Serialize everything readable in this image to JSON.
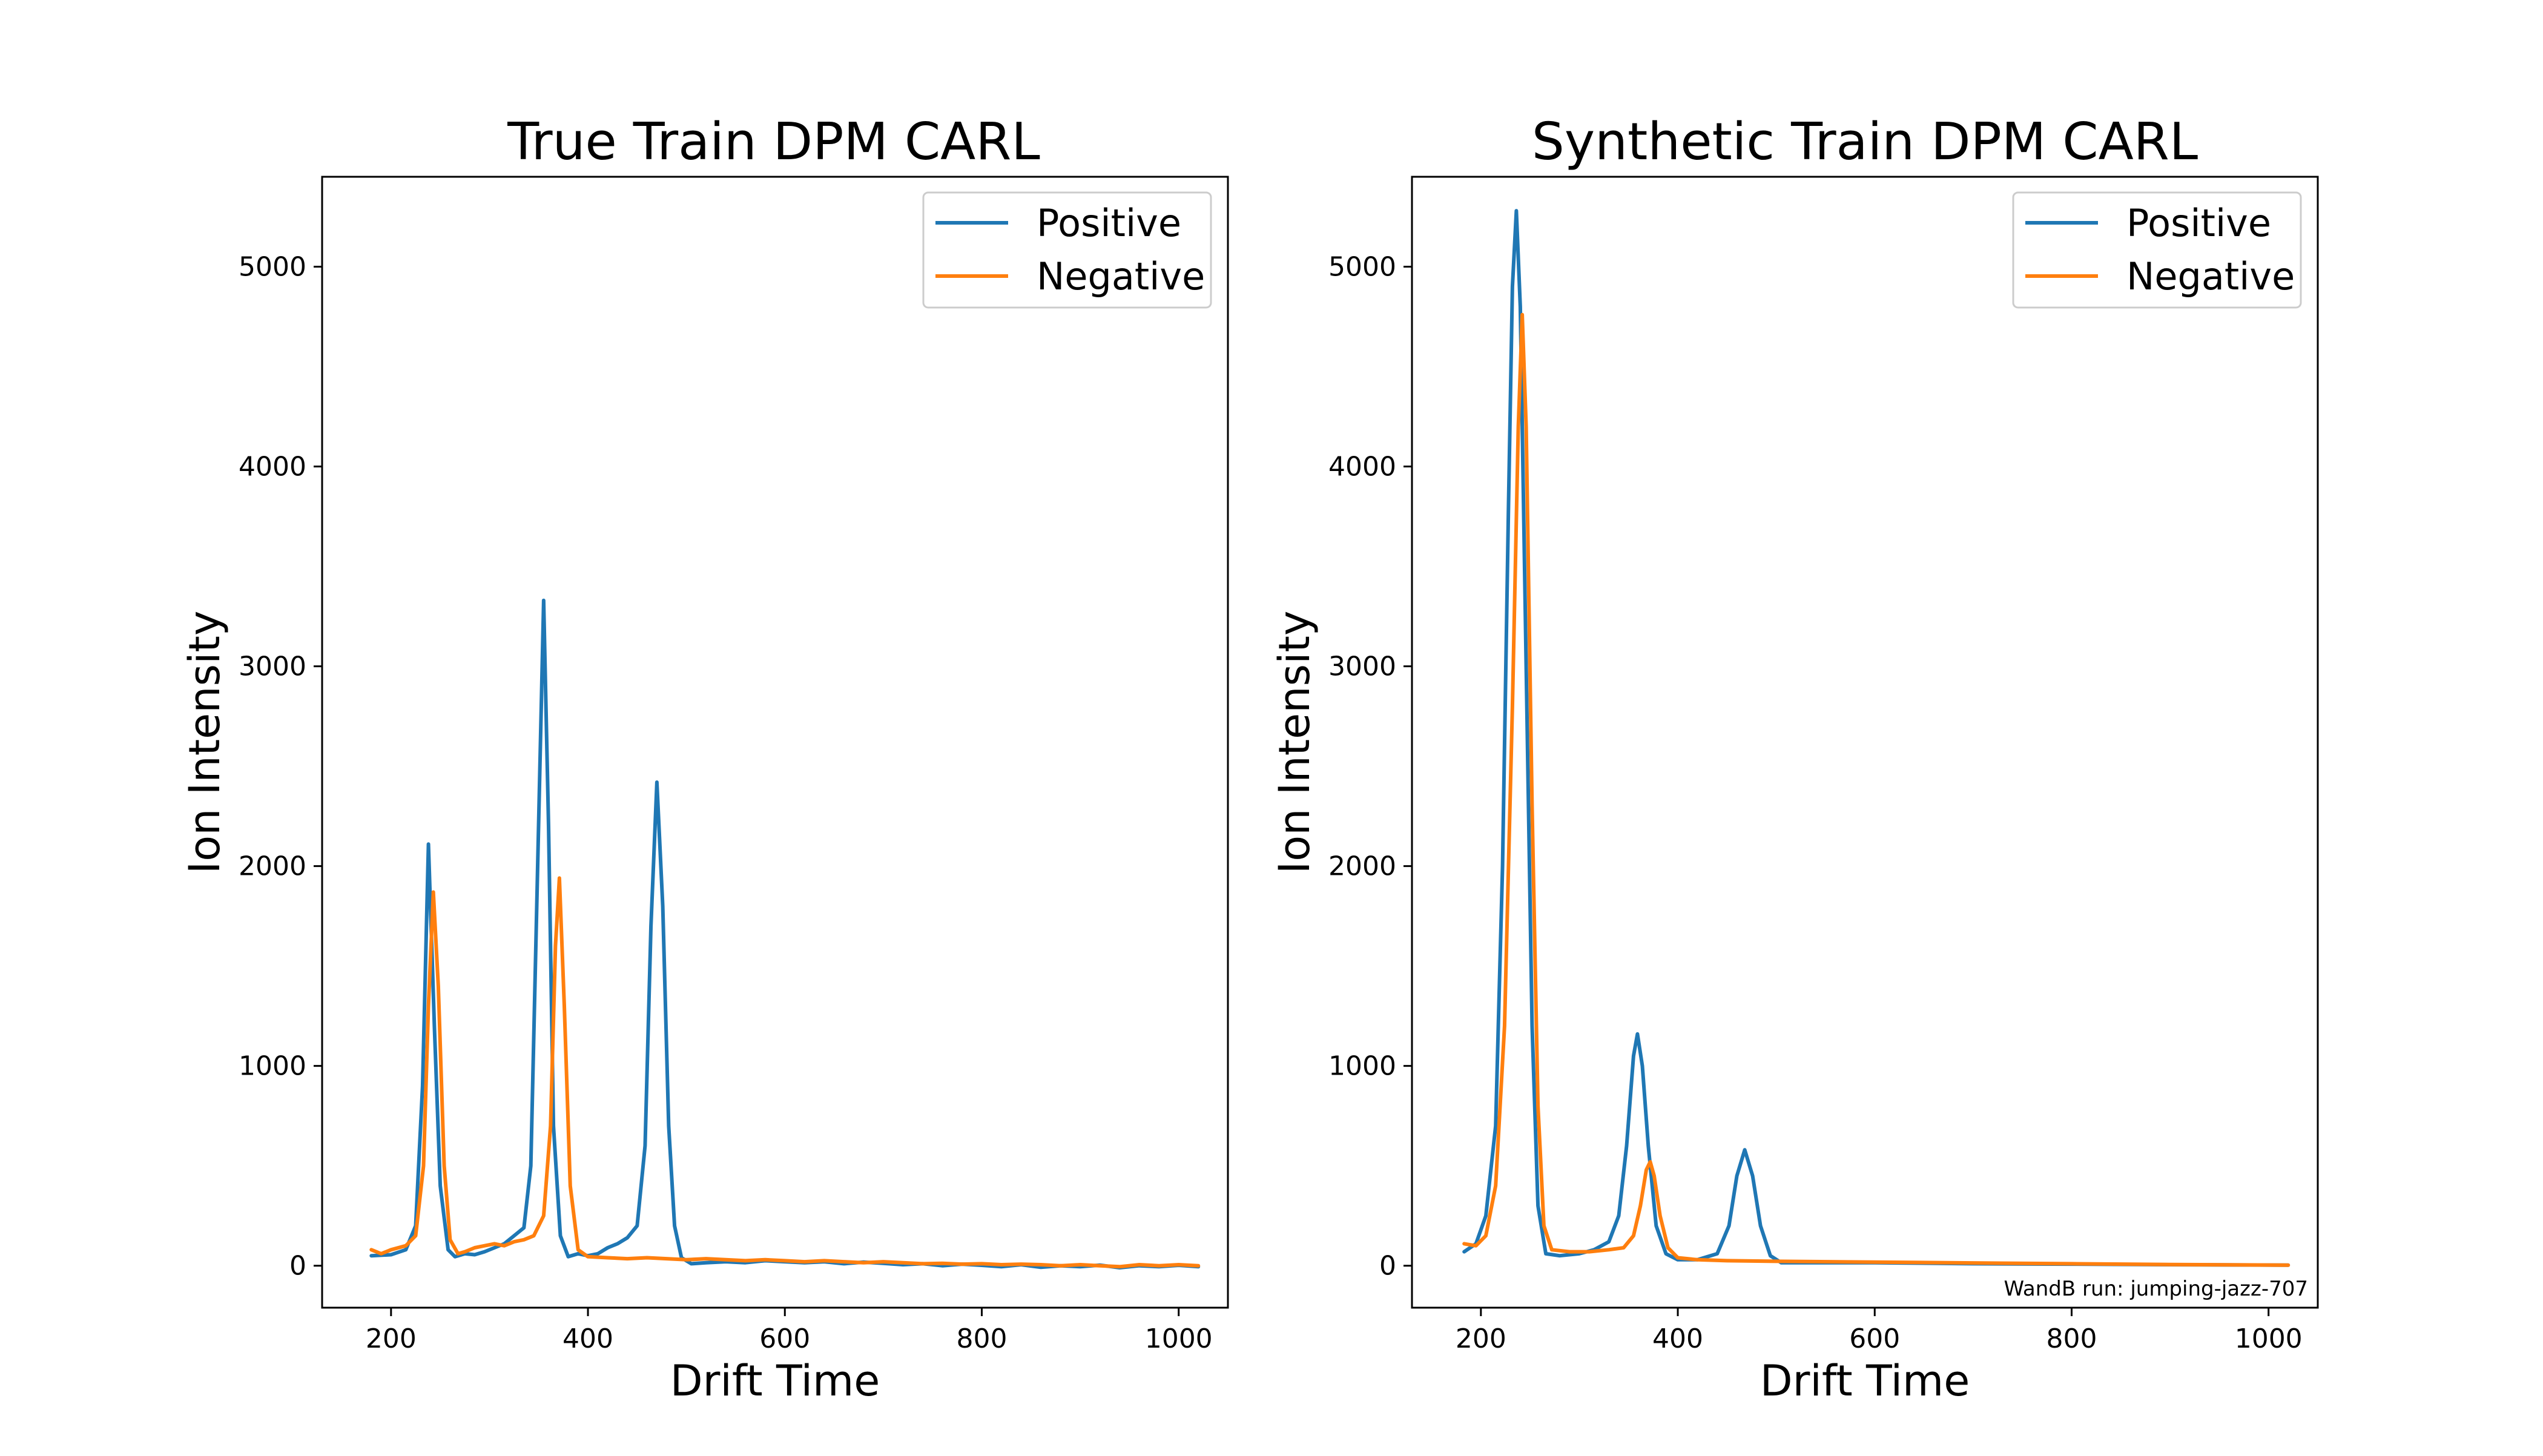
{
  "chart_data": [
    {
      "type": "line",
      "title": "True Train DPM CARL",
      "xlabel": "Drift Time",
      "ylabel": "Ion Intensity",
      "xlim": [
        130,
        1050
      ],
      "ylim": [
        -210,
        5450
      ],
      "xticks": [
        200,
        400,
        600,
        800,
        1000
      ],
      "yticks": [
        0,
        1000,
        2000,
        3000,
        4000,
        5000
      ],
      "legend": "top-right",
      "grid": false,
      "series": [
        {
          "name": "Positive",
          "color": "#1f77b4",
          "points": [
            [
              180,
              50
            ],
            [
              200,
              55
            ],
            [
              215,
              80
            ],
            [
              225,
              200
            ],
            [
              232,
              900
            ],
            [
              238,
              2110
            ],
            [
              244,
              1200
            ],
            [
              250,
              400
            ],
            [
              258,
              80
            ],
            [
              265,
              45
            ],
            [
              275,
              60
            ],
            [
              285,
              55
            ],
            [
              295,
              70
            ],
            [
              305,
              90
            ],
            [
              315,
              110
            ],
            [
              325,
              150
            ],
            [
              335,
              190
            ],
            [
              342,
              500
            ],
            [
              348,
              1800
            ],
            [
              355,
              3330
            ],
            [
              360,
              2200
            ],
            [
              365,
              700
            ],
            [
              372,
              150
            ],
            [
              380,
              45
            ],
            [
              390,
              60
            ],
            [
              400,
              50
            ],
            [
              410,
              60
            ],
            [
              420,
              90
            ],
            [
              430,
              110
            ],
            [
              440,
              140
            ],
            [
              450,
              200
            ],
            [
              458,
              600
            ],
            [
              464,
              1700
            ],
            [
              470,
              2420
            ],
            [
              476,
              1800
            ],
            [
              482,
              700
            ],
            [
              488,
              200
            ],
            [
              495,
              40
            ],
            [
              505,
              10
            ],
            [
              520,
              15
            ],
            [
              540,
              20
            ],
            [
              560,
              15
            ],
            [
              580,
              25
            ],
            [
              600,
              20
            ],
            [
              620,
              15
            ],
            [
              640,
              20
            ],
            [
              660,
              10
            ],
            [
              680,
              18
            ],
            [
              700,
              12
            ],
            [
              720,
              5
            ],
            [
              740,
              10
            ],
            [
              760,
              0
            ],
            [
              780,
              8
            ],
            [
              800,
              2
            ],
            [
              820,
              -5
            ],
            [
              840,
              5
            ],
            [
              860,
              -8
            ],
            [
              880,
              0
            ],
            [
              900,
              -5
            ],
            [
              920,
              3
            ],
            [
              940,
              -10
            ],
            [
              960,
              0
            ],
            [
              980,
              -5
            ],
            [
              1000,
              2
            ],
            [
              1020,
              -5
            ]
          ]
        },
        {
          "name": "Negative",
          "color": "#ff7f0e",
          "points": [
            [
              180,
              80
            ],
            [
              190,
              60
            ],
            [
              200,
              80
            ],
            [
              215,
              100
            ],
            [
              225,
              150
            ],
            [
              233,
              500
            ],
            [
              238,
              1300
            ],
            [
              243,
              1870
            ],
            [
              248,
              1400
            ],
            [
              254,
              500
            ],
            [
              260,
              130
            ],
            [
              268,
              60
            ],
            [
              275,
              70
            ],
            [
              285,
              90
            ],
            [
              295,
              100
            ],
            [
              305,
              110
            ],
            [
              315,
              100
            ],
            [
              325,
              120
            ],
            [
              335,
              130
            ],
            [
              345,
              150
            ],
            [
              355,
              250
            ],
            [
              362,
              700
            ],
            [
              367,
              1600
            ],
            [
              371,
              1940
            ],
            [
              376,
              1300
            ],
            [
              382,
              400
            ],
            [
              390,
              80
            ],
            [
              400,
              45
            ],
            [
              420,
              40
            ],
            [
              440,
              35
            ],
            [
              460,
              40
            ],
            [
              480,
              35
            ],
            [
              500,
              30
            ],
            [
              520,
              35
            ],
            [
              540,
              30
            ],
            [
              560,
              25
            ],
            [
              580,
              30
            ],
            [
              600,
              25
            ],
            [
              620,
              20
            ],
            [
              640,
              25
            ],
            [
              660,
              20
            ],
            [
              680,
              15
            ],
            [
              700,
              20
            ],
            [
              720,
              15
            ],
            [
              740,
              10
            ],
            [
              760,
              12
            ],
            [
              780,
              8
            ],
            [
              800,
              10
            ],
            [
              820,
              5
            ],
            [
              840,
              8
            ],
            [
              860,
              5
            ],
            [
              880,
              0
            ],
            [
              900,
              5
            ],
            [
              920,
              0
            ],
            [
              940,
              -5
            ],
            [
              960,
              5
            ],
            [
              980,
              0
            ],
            [
              1000,
              5
            ],
            [
              1020,
              0
            ]
          ]
        }
      ]
    },
    {
      "type": "line",
      "title": "Synthetic Train DPM CARL",
      "xlabel": "Drift Time",
      "ylabel": "Ion Intensity",
      "xlim": [
        130,
        1050
      ],
      "ylim": [
        -210,
        5450
      ],
      "xticks": [
        200,
        400,
        600,
        800,
        1000
      ],
      "yticks": [
        0,
        1000,
        2000,
        3000,
        4000,
        5000
      ],
      "legend": "top-right",
      "grid": false,
      "annotation": "WandB run: jumping-jazz-707",
      "series": [
        {
          "name": "Positive",
          "color": "#1f77b4",
          "points": [
            [
              183,
              70
            ],
            [
              195,
              110
            ],
            [
              205,
              250
            ],
            [
              215,
              700
            ],
            [
              222,
              2000
            ],
            [
              228,
              3800
            ],
            [
              232,
              4900
            ],
            [
              236,
              5280
            ],
            [
              240,
              4800
            ],
            [
              246,
              3000
            ],
            [
              252,
              1200
            ],
            [
              258,
              300
            ],
            [
              266,
              60
            ],
            [
              280,
              50
            ],
            [
              300,
              60
            ],
            [
              315,
              80
            ],
            [
              330,
              120
            ],
            [
              340,
              250
            ],
            [
              348,
              600
            ],
            [
              355,
              1050
            ],
            [
              359,
              1160
            ],
            [
              364,
              1000
            ],
            [
              370,
              600
            ],
            [
              378,
              200
            ],
            [
              388,
              60
            ],
            [
              400,
              30
            ],
            [
              420,
              30
            ],
            [
              440,
              60
            ],
            [
              452,
              200
            ],
            [
              460,
              450
            ],
            [
              468,
              580
            ],
            [
              476,
              450
            ],
            [
              484,
              200
            ],
            [
              494,
              50
            ],
            [
              505,
              15
            ],
            [
              600,
              15
            ],
            [
              700,
              10
            ],
            [
              800,
              8
            ],
            [
              900,
              5
            ],
            [
              1020,
              3
            ]
          ]
        },
        {
          "name": "Negative",
          "color": "#ff7f0e",
          "points": [
            [
              183,
              110
            ],
            [
              195,
              100
            ],
            [
              205,
              150
            ],
            [
              215,
              400
            ],
            [
              224,
              1200
            ],
            [
              232,
              2800
            ],
            [
              238,
              4200
            ],
            [
              242,
              4760
            ],
            [
              246,
              4200
            ],
            [
              252,
              2300
            ],
            [
              258,
              800
            ],
            [
              264,
              200
            ],
            [
              272,
              80
            ],
            [
              290,
              70
            ],
            [
              310,
              70
            ],
            [
              330,
              80
            ],
            [
              345,
              90
            ],
            [
              355,
              150
            ],
            [
              362,
              300
            ],
            [
              368,
              480
            ],
            [
              372,
              520
            ],
            [
              376,
              450
            ],
            [
              382,
              250
            ],
            [
              390,
              90
            ],
            [
              400,
              40
            ],
            [
              420,
              30
            ],
            [
              450,
              25
            ],
            [
              500,
              22
            ],
            [
              600,
              18
            ],
            [
              700,
              14
            ],
            [
              800,
              10
            ],
            [
              900,
              6
            ],
            [
              1020,
              3
            ]
          ]
        }
      ]
    }
  ]
}
